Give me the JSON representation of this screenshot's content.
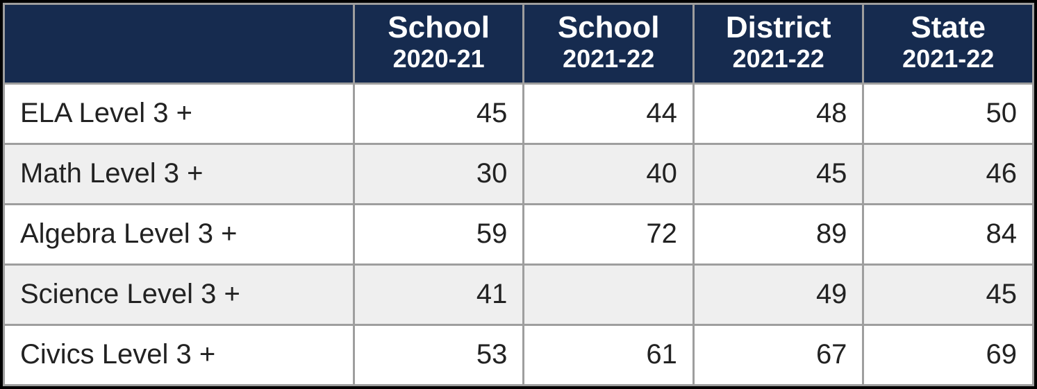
{
  "style": {
    "header_bg": "#162b4f",
    "header_fg": "#ffffff",
    "border_color": "#9e9e9e",
    "row_odd_bg": "#ffffff",
    "row_even_bg": "#efefef",
    "body_fg": "#222222",
    "label_col_width_pct": 34,
    "data_col_width_pct": 16.5,
    "header_title_fontsize_pt": 33,
    "header_sub_fontsize_pt": 27,
    "cell_fontsize_pt": 30
  },
  "table": {
    "type": "table",
    "columns": [
      {
        "title": "",
        "sub": ""
      },
      {
        "title": "School",
        "sub": "2020-21"
      },
      {
        "title": "School",
        "sub": "2021-22"
      },
      {
        "title": "District",
        "sub": "2021-22"
      },
      {
        "title": "State",
        "sub": "2021-22"
      }
    ],
    "rows": [
      {
        "label": "ELA Level 3 +",
        "values": [
          "45",
          "44",
          "48",
          "50"
        ]
      },
      {
        "label": "Math Level 3 +",
        "values": [
          "30",
          "40",
          "45",
          "46"
        ]
      },
      {
        "label": "Algebra Level 3 +",
        "values": [
          "59",
          "72",
          "89",
          "84"
        ]
      },
      {
        "label": "Science Level 3 +",
        "values": [
          "41",
          "",
          "49",
          "45"
        ]
      },
      {
        "label": "Civics Level 3 +",
        "values": [
          "53",
          "61",
          "67",
          "69"
        ]
      }
    ]
  }
}
